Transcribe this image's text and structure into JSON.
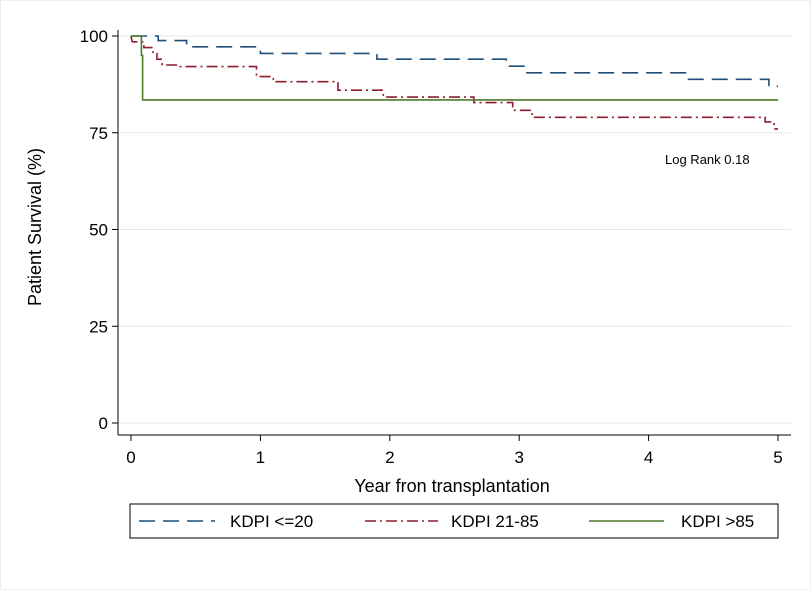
{
  "chart_data": {
    "type": "line",
    "subtype": "kaplan-meier step",
    "xlabel": "Year fron transplantation",
    "ylabel": "Patient Survival (%)",
    "xlim": [
      0,
      5
    ],
    "ylim": [
      0,
      100
    ],
    "xticks": [
      "0",
      "1",
      "2",
      "3",
      "4",
      "5"
    ],
    "yticks": [
      "0",
      "25",
      "50",
      "75",
      "100"
    ],
    "grid": "horizontal",
    "legend_position": "bottom",
    "annotation": "Log Rank  0.18",
    "series": [
      {
        "name": "KDPI <=20",
        "color": "#1f4e79",
        "dash": "long-dash",
        "points": [
          [
            0,
            100
          ],
          [
            0.21,
            100
          ],
          [
            0.21,
            98.8
          ],
          [
            0.43,
            98.8
          ],
          [
            0.43,
            97.2
          ],
          [
            1.0,
            97.2
          ],
          [
            1.0,
            95.5
          ],
          [
            1.9,
            95.5
          ],
          [
            1.9,
            94.0
          ],
          [
            2.9,
            94.0
          ],
          [
            2.9,
            92.2
          ],
          [
            3.05,
            92.2
          ],
          [
            3.05,
            90.5
          ],
          [
            4.3,
            90.5
          ],
          [
            4.3,
            88.8
          ],
          [
            4.93,
            88.8
          ],
          [
            4.93,
            87.0
          ],
          [
            5.0,
            87.0
          ]
        ]
      },
      {
        "name": "KDPI 21-85",
        "color": "#8c1c2e",
        "dash": "dash-dot",
        "points": [
          [
            0,
            100
          ],
          [
            0.01,
            98.5
          ],
          [
            0.1,
            98.5
          ],
          [
            0.1,
            97.0
          ],
          [
            0.17,
            97.0
          ],
          [
            0.17,
            95.5
          ],
          [
            0.2,
            95.5
          ],
          [
            0.2,
            94.0
          ],
          [
            0.24,
            94.0
          ],
          [
            0.24,
            92.5
          ],
          [
            0.38,
            92.5
          ],
          [
            0.38,
            92.1
          ],
          [
            0.97,
            92.1
          ],
          [
            0.97,
            89.5
          ],
          [
            1.1,
            89.5
          ],
          [
            1.1,
            88.2
          ],
          [
            1.6,
            88.2
          ],
          [
            1.6,
            86.0
          ],
          [
            1.95,
            86.0
          ],
          [
            1.95,
            84.2
          ],
          [
            2.65,
            84.2
          ],
          [
            2.65,
            82.8
          ],
          [
            2.95,
            82.8
          ],
          [
            2.95,
            80.8
          ],
          [
            3.1,
            80.8
          ],
          [
            3.1,
            79.0
          ],
          [
            4.9,
            79.0
          ],
          [
            4.9,
            77.8
          ],
          [
            4.97,
            77.8
          ],
          [
            4.97,
            76.0
          ],
          [
            5.0,
            76.0
          ]
        ]
      },
      {
        "name": "KDPI >85",
        "color": "#4f7a28",
        "dash": "solid",
        "points": [
          [
            0,
            100
          ],
          [
            0.08,
            100
          ],
          [
            0.08,
            95.0
          ],
          [
            0.09,
            95.0
          ],
          [
            0.09,
            83.5
          ],
          [
            5.0,
            83.5
          ]
        ]
      }
    ]
  }
}
